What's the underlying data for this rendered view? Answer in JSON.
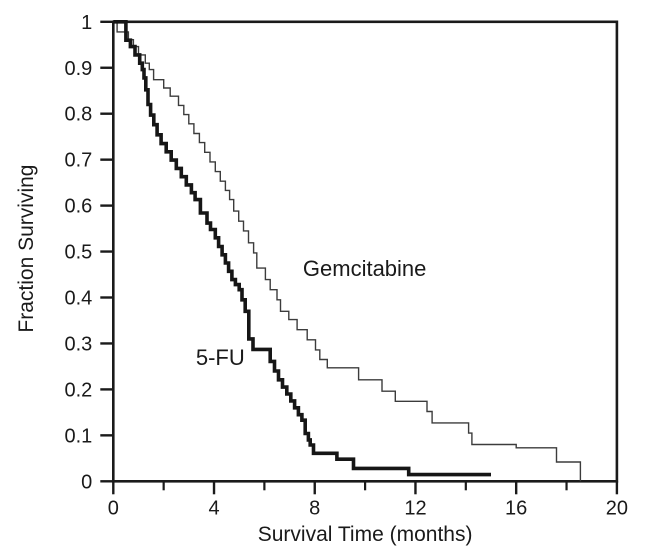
{
  "figure": {
    "background": "#ffffff",
    "description": "Kaplan-Meier survival curves comparing Gemcitabine vs 5-FU"
  },
  "chart_data": {
    "type": "line",
    "subtype": "kaplan-meier-step",
    "title": "",
    "xlabel": "Survival Time (months)",
    "ylabel": "Fraction Surviving",
    "xlim": [
      0,
      20
    ],
    "ylim": [
      0,
      1
    ],
    "grid": false,
    "frame": true,
    "legend_position": "inline-annotations",
    "x_major_ticks": [
      0,
      4,
      8,
      12,
      16,
      20
    ],
    "x_major_tick_labels": [
      "0",
      "4",
      "8",
      "12",
      "16",
      "20"
    ],
    "x_minor_ticks": [
      2,
      6,
      10,
      14,
      18
    ],
    "y_ticks": [
      1,
      0.9,
      0.8,
      0.7,
      0.6,
      0.5,
      0.4,
      0.3,
      0.2,
      0.1,
      0
    ],
    "y_tick_labels": [
      "1",
      "0.9",
      "0.8",
      "0.7",
      "0.6",
      "0.5",
      "0.4",
      "0.3",
      "0.2",
      "0.1",
      "0"
    ],
    "colors": {
      "axis": "#1a1a1a",
      "five_fu_line": "#161616",
      "gemcitabine_line": "#3c3c3c",
      "text": "#1a1a1a"
    },
    "annotations": [
      {
        "text": "Gemcitabine",
        "t": 7.53,
        "f": 0.447,
        "font_size": 22
      },
      {
        "text": "5-FU",
        "t": 3.28,
        "f": 0.253,
        "font_size": 22
      }
    ],
    "series": [
      {
        "name": "Gemcitabine",
        "line_width": 1.4,
        "color_key": "gemcitabine_line",
        "start": [
          0,
          1.0
        ],
        "end_t": 18.55,
        "steps": [
          [
            0.15,
            0.978
          ],
          [
            0.6,
            0.961
          ],
          [
            0.8,
            0.946
          ],
          [
            1.0,
            0.928
          ],
          [
            1.27,
            0.91
          ],
          [
            1.43,
            0.896
          ],
          [
            1.6,
            0.874
          ],
          [
            2.0,
            0.856
          ],
          [
            2.26,
            0.838
          ],
          [
            2.59,
            0.818
          ],
          [
            2.8,
            0.798
          ],
          [
            3.0,
            0.778
          ],
          [
            3.2,
            0.757
          ],
          [
            3.42,
            0.737
          ],
          [
            3.63,
            0.716
          ],
          [
            3.84,
            0.695
          ],
          [
            4.05,
            0.674
          ],
          [
            4.25,
            0.653
          ],
          [
            4.45,
            0.633
          ],
          [
            4.62,
            0.613
          ],
          [
            4.78,
            0.588
          ],
          [
            4.98,
            0.566
          ],
          [
            5.17,
            0.545
          ],
          [
            5.37,
            0.519
          ],
          [
            5.57,
            0.497
          ],
          [
            5.7,
            0.464
          ],
          [
            6.04,
            0.439
          ],
          [
            6.23,
            0.417
          ],
          [
            6.5,
            0.395
          ],
          [
            6.64,
            0.37
          ],
          [
            6.97,
            0.352
          ],
          [
            7.3,
            0.33
          ],
          [
            7.7,
            0.308
          ],
          [
            8.03,
            0.286
          ],
          [
            8.2,
            0.265
          ],
          [
            8.5,
            0.247
          ],
          [
            9.74,
            0.221
          ],
          [
            10.67,
            0.196
          ],
          [
            11.2,
            0.174
          ],
          [
            12.46,
            0.152
          ],
          [
            12.66,
            0.127
          ],
          [
            14.11,
            0.105
          ],
          [
            14.24,
            0.08
          ],
          [
            16.0,
            0.073
          ],
          [
            17.6,
            0.042
          ],
          [
            18.55,
            0.0
          ]
        ]
      },
      {
        "name": "5-FU",
        "line_width": 3.6,
        "color_key": "five_fu_line",
        "start": [
          0,
          1.0
        ],
        "end_t": 15.0,
        "steps": [
          [
            0.5,
            0.96
          ],
          [
            0.68,
            0.946
          ],
          [
            0.86,
            0.928
          ],
          [
            1.05,
            0.91
          ],
          [
            1.15,
            0.896
          ],
          [
            1.22,
            0.878
          ],
          [
            1.29,
            0.852
          ],
          [
            1.38,
            0.82
          ],
          [
            1.48,
            0.797
          ],
          [
            1.61,
            0.776
          ],
          [
            1.74,
            0.754
          ],
          [
            1.9,
            0.735
          ],
          [
            2.1,
            0.717
          ],
          [
            2.3,
            0.699
          ],
          [
            2.5,
            0.681
          ],
          [
            2.7,
            0.663
          ],
          [
            2.9,
            0.645
          ],
          [
            3.1,
            0.628
          ],
          [
            3.25,
            0.613
          ],
          [
            3.46,
            0.584
          ],
          [
            3.72,
            0.562
          ],
          [
            3.86,
            0.548
          ],
          [
            4.05,
            0.53
          ],
          [
            4.18,
            0.511
          ],
          [
            4.32,
            0.493
          ],
          [
            4.45,
            0.475
          ],
          [
            4.58,
            0.457
          ],
          [
            4.71,
            0.439
          ],
          [
            4.85,
            0.428
          ],
          [
            5.0,
            0.417
          ],
          [
            5.11,
            0.395
          ],
          [
            5.24,
            0.37
          ],
          [
            5.38,
            0.31
          ],
          [
            5.55,
            0.287
          ],
          [
            6.23,
            0.261
          ],
          [
            6.4,
            0.24
          ],
          [
            6.56,
            0.221
          ],
          [
            6.72,
            0.205
          ],
          [
            6.89,
            0.19
          ],
          [
            7.05,
            0.175
          ],
          [
            7.2,
            0.16
          ],
          [
            7.35,
            0.145
          ],
          [
            7.49,
            0.133
          ],
          [
            7.62,
            0.104
          ],
          [
            7.75,
            0.09
          ],
          [
            7.82,
            0.079
          ],
          [
            7.95,
            0.061
          ],
          [
            8.88,
            0.048
          ],
          [
            9.54,
            0.028
          ],
          [
            11.73,
            0.0145
          ]
        ]
      }
    ],
    "axis_label_font_size": 21,
    "tick_label_font_size": 20
  }
}
